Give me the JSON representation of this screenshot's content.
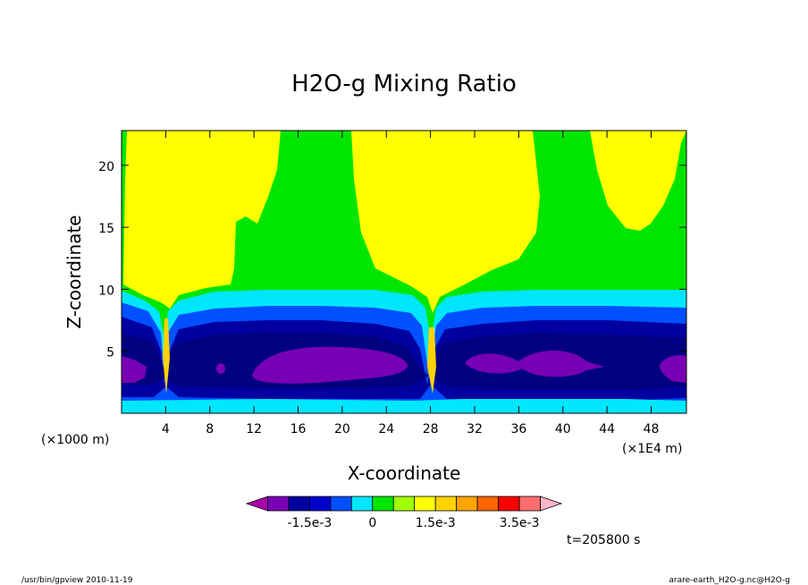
{
  "chart_data": {
    "type": "heatmap",
    "title": "H2O-g Mixing Ratio",
    "xlabel": "X-coordinate",
    "ylabel": "Z-coordinate",
    "x_unit_left": "(×1000 m)",
    "x_unit_right": "(×1E4 m)",
    "xlim": [
      0,
      51.2
    ],
    "ylim": [
      0,
      22.8
    ],
    "x_ticks": [
      4,
      8,
      12,
      16,
      20,
      24,
      28,
      32,
      36,
      40,
      44,
      48
    ],
    "y_ticks": [
      5,
      10,
      15,
      20
    ],
    "time_label": "t=205800 s",
    "colorbar": {
      "orientation": "horizontal",
      "colors": [
        "#aa00aa",
        "#7800b4",
        "#0000a0",
        "#0000cd",
        "#0050ff",
        "#00e6ff",
        "#00e600",
        "#a0ff00",
        "#ffff00",
        "#ffd200",
        "#ffa500",
        "#ff6400",
        "#ff0000",
        "#ff6e6e",
        "#ffb4c8"
      ],
      "labels": [
        "-1.5e-3",
        "0",
        "1.5e-3",
        "3.5e-3"
      ]
    },
    "levels": [
      {
        "name": "0 to 1.5e-3",
        "color": "#ffff00"
      },
      {
        "name": "-5e-4 to 0",
        "color": "#00e600"
      },
      {
        "name": "-1e-3 to -5e-4",
        "color": "#00e6ff"
      },
      {
        "name": "-1.5e-3 to -1e-3",
        "color": "#0050ff"
      },
      {
        "name": "-2e-3 to -1.5e-3",
        "color": "#0000a0"
      },
      {
        "name": "-2.5e-3 to -2e-3",
        "color": "#7800b4"
      }
    ]
  },
  "footer": {
    "left": "/usr/bin/gpview  2010-11-19",
    "right": "arare-earth_H2O-g.nc@H2O-g"
  }
}
